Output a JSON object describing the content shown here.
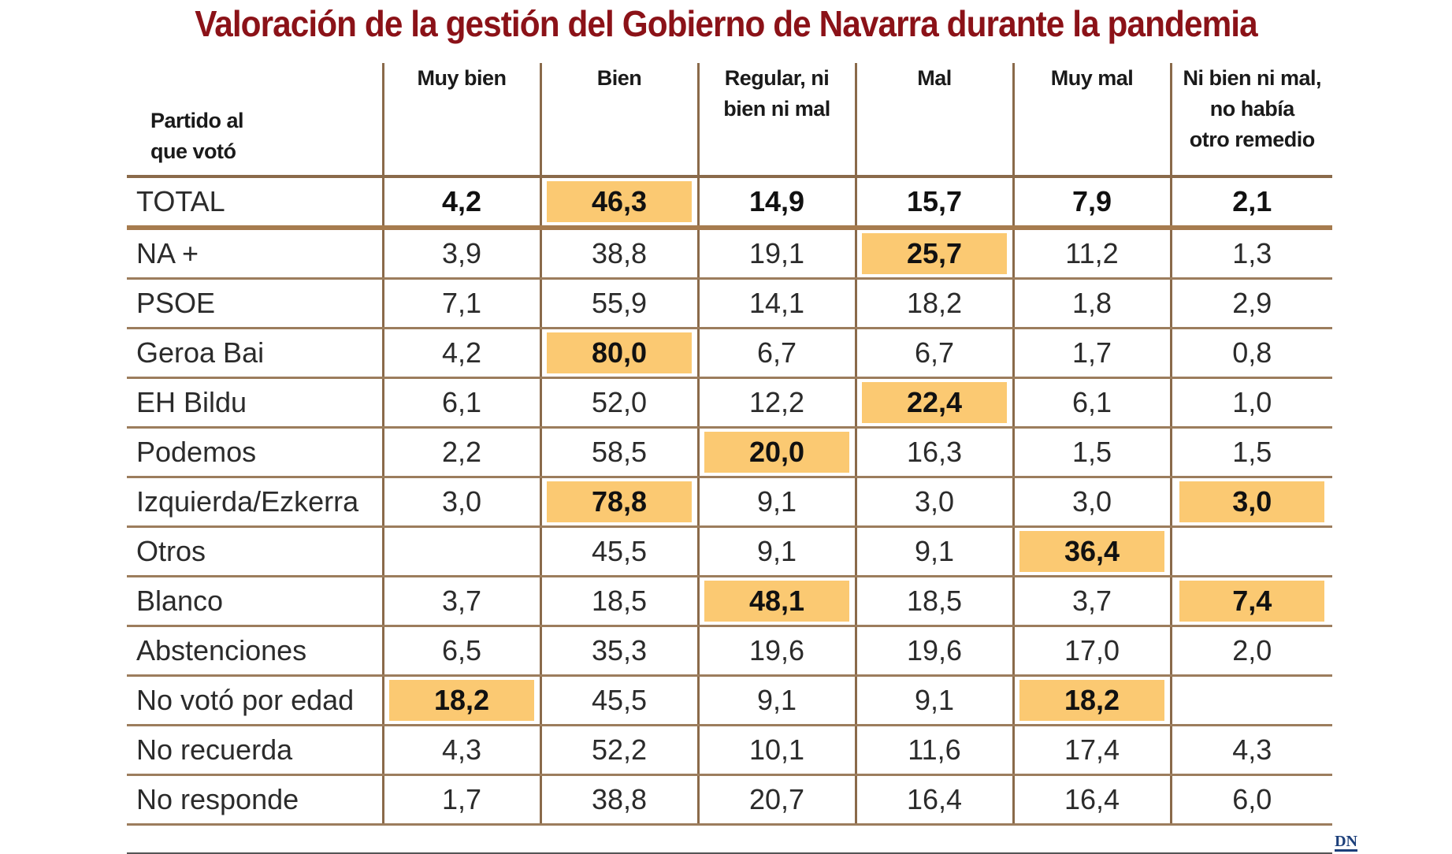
{
  "title": "Valoración de la gestión del Gobierno de Navarra durante la pandemia",
  "source_logo": "DN",
  "colors": {
    "title": "#8b1218",
    "highlight": "#fbc972",
    "rule": "#8a6a4a"
  },
  "chart_data": {
    "type": "table",
    "title": "Valoración de la gestión del Gobierno de Navarra durante la pandemia",
    "row_header": [
      "Partido al",
      "que votó"
    ],
    "columns": [
      [
        "Muy bien"
      ],
      [
        "Bien"
      ],
      [
        "Regular, ni",
        "bien ni mal"
      ],
      [
        "Mal"
      ],
      [
        "Muy mal"
      ],
      [
        "Ni bien ni mal,",
        "no había",
        "otro remedio"
      ]
    ],
    "rows": [
      {
        "label": "TOTAL",
        "values": [
          "4,2",
          "46,3",
          "14,9",
          "15,7",
          "7,9",
          "2,1"
        ],
        "highlight": [
          1
        ]
      },
      {
        "label": "NA +",
        "values": [
          "3,9",
          "38,8",
          "19,1",
          "25,7",
          "11,2",
          "1,3"
        ],
        "highlight": [
          3
        ]
      },
      {
        "label": "PSOE",
        "values": [
          "7,1",
          "55,9",
          "14,1",
          "18,2",
          "1,8",
          "2,9"
        ],
        "highlight": []
      },
      {
        "label": "Geroa Bai",
        "values": [
          "4,2",
          "80,0",
          "6,7",
          "6,7",
          "1,7",
          "0,8"
        ],
        "highlight": [
          1
        ]
      },
      {
        "label": "EH Bildu",
        "values": [
          "6,1",
          "52,0",
          "12,2",
          "22,4",
          "6,1",
          "1,0"
        ],
        "highlight": [
          3
        ]
      },
      {
        "label": "Podemos",
        "values": [
          "2,2",
          "58,5",
          "20,0",
          "16,3",
          "1,5",
          "1,5"
        ],
        "highlight": [
          2
        ]
      },
      {
        "label": "Izquierda/Ezkerra",
        "values": [
          "3,0",
          "78,8",
          "9,1",
          "3,0",
          "3,0",
          "3,0"
        ],
        "highlight": [
          1,
          5
        ]
      },
      {
        "label": "Otros",
        "values": [
          "",
          "45,5",
          "9,1",
          "9,1",
          "36,4",
          ""
        ],
        "highlight": [
          4
        ]
      },
      {
        "label": "Blanco",
        "values": [
          "3,7",
          "18,5",
          "48,1",
          "18,5",
          "3,7",
          "7,4"
        ],
        "highlight": [
          2,
          5
        ]
      },
      {
        "label": "Abstenciones",
        "values": [
          "6,5",
          "35,3",
          "19,6",
          "19,6",
          "17,0",
          "2,0"
        ],
        "highlight": []
      },
      {
        "label": "No votó por edad",
        "values": [
          "18,2",
          "45,5",
          "9,1",
          "9,1",
          "18,2",
          ""
        ],
        "highlight": [
          0,
          4
        ]
      },
      {
        "label": "No recuerda",
        "values": [
          "4,3",
          "52,2",
          "10,1",
          "11,6",
          "17,4",
          "4,3"
        ],
        "highlight": []
      },
      {
        "label": "No responde",
        "values": [
          "1,7",
          "38,8",
          "20,7",
          "16,4",
          "16,4",
          "6,0"
        ],
        "highlight": []
      }
    ]
  }
}
